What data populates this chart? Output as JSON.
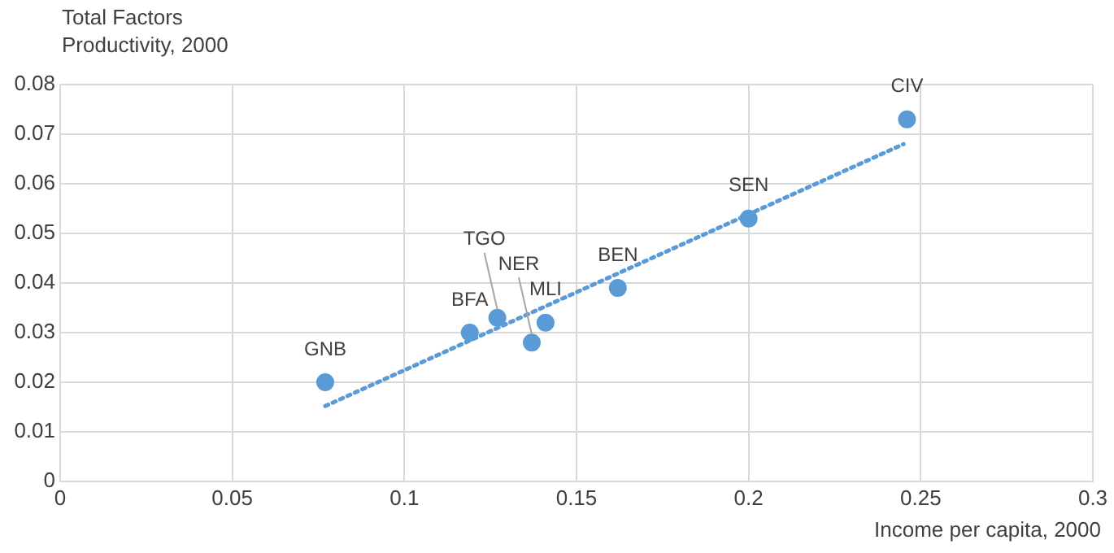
{
  "chart_data": {
    "type": "scatter",
    "xlabel": "Income per capita, 2000",
    "ylabel": "Total Factors Productivity, 2000",
    "x": [
      0.077,
      0.119,
      0.127,
      0.137,
      0.141,
      0.162,
      0.2,
      0.246
    ],
    "series": [
      {
        "color": "#5b9bd5",
        "values": [
          0.02,
          0.03,
          0.033,
          0.028,
          0.032,
          0.039,
          0.053,
          0.073
        ],
        "marker": "circle"
      },
      {
        "type": "line",
        "color": "#5b9bd5",
        "x": [
          0.077,
          0.245
        ],
        "values": [
          0.0152,
          0.068
        ],
        "line_style": "dotted",
        "marker": "none"
      }
    ],
    "annotations": [
      {
        "text": "GNB",
        "x": 0.077,
        "y": 0.02
      },
      {
        "text": "BFA",
        "x": 0.119,
        "y": 0.03
      },
      {
        "text": "TGO",
        "x": 0.127,
        "y": 0.033
      },
      {
        "text": "NER",
        "x": 0.137,
        "y": 0.028
      },
      {
        "text": "MLI",
        "x": 0.141,
        "y": 0.032
      },
      {
        "text": "BEN",
        "x": 0.162,
        "y": 0.039
      },
      {
        "text": "SEN",
        "x": 0.2,
        "y": 0.053
      },
      {
        "text": "CIV",
        "x": 0.246,
        "y": 0.073
      }
    ],
    "xlim": [
      0,
      0.3
    ],
    "xticks": [
      0,
      0.05,
      0.1,
      0.15,
      0.2,
      0.25,
      0.3
    ],
    "ylim": [
      0,
      0.08
    ],
    "yticks": [
      0,
      0.01,
      0.02,
      0.03,
      0.04,
      0.05,
      0.06,
      0.07,
      0.08
    ],
    "grid": true,
    "legend": false
  }
}
